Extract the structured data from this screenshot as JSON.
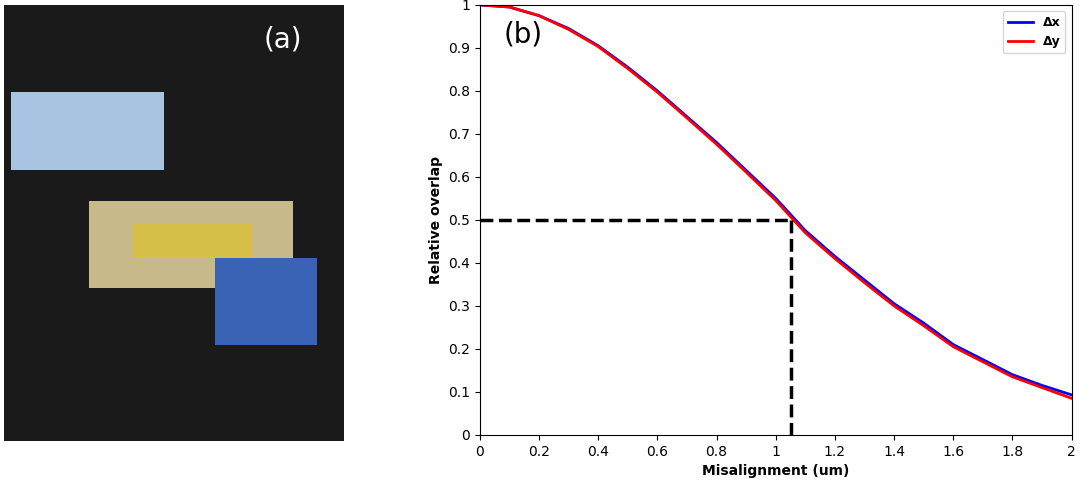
{
  "photo": {
    "label": "(a)"
  },
  "chart_data": {
    "type": "line",
    "annotations": [
      "(b)"
    ],
    "x_label": "Misalignment (um)",
    "y_label": "Relative overlap",
    "x": [
      0,
      0.1,
      0.2,
      0.3,
      0.4,
      0.5,
      0.6,
      0.7,
      0.8,
      0.9,
      1.0,
      1.1,
      1.2,
      1.3,
      1.4,
      1.5,
      1.6,
      1.7,
      1.8,
      1.9,
      2.0
    ],
    "series": [
      {
        "name": "Δx",
        "color": "#0000ff",
        "values": [
          1.0,
          0.995,
          0.975,
          0.945,
          0.905,
          0.855,
          0.8,
          0.74,
          0.68,
          0.615,
          0.55,
          0.475,
          0.415,
          0.36,
          0.305,
          0.26,
          0.21,
          0.175,
          0.14,
          0.115,
          0.093
        ]
      },
      {
        "name": "Δy",
        "color": "#ff0000",
        "values": [
          1.0,
          0.995,
          0.975,
          0.943,
          0.903,
          0.852,
          0.797,
          0.737,
          0.676,
          0.611,
          0.545,
          0.47,
          0.41,
          0.354,
          0.3,
          0.254,
          0.205,
          0.17,
          0.135,
          0.11,
          0.085
        ]
      }
    ],
    "dashed_guide": {
      "x": 1.05,
      "y": 0.5,
      "color": "#000000"
    },
    "xlim": [
      0,
      2
    ],
    "xticks": [
      0,
      0.2,
      0.4,
      0.6,
      0.8,
      1,
      1.2,
      1.4,
      1.6,
      1.8,
      2
    ],
    "ylim": [
      0,
      1
    ],
    "yticks": [
      0,
      0.1,
      0.2,
      0.3,
      0.4,
      0.5,
      0.6,
      0.7,
      0.8,
      0.9,
      1
    ],
    "legend": "upper right",
    "grid": false
  }
}
